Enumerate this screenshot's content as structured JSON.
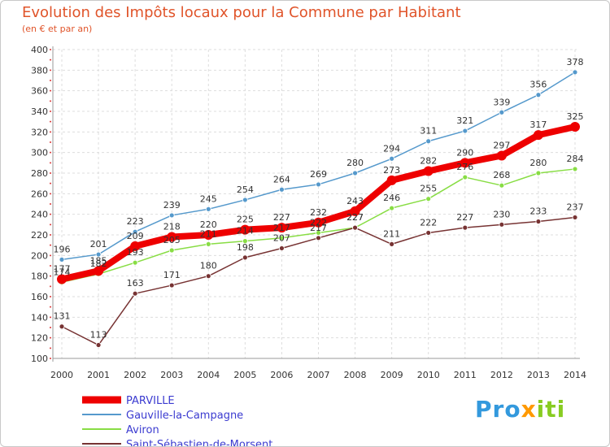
{
  "chart_data": {
    "type": "line",
    "title": "Evolution des Impôts locaux pour la Commune par Habitant",
    "subtitle": "(en € et par an)",
    "xlabel": "",
    "ylabel": "",
    "x": [
      "2000",
      "2001",
      "2002",
      "2003",
      "2004",
      "2005",
      "2006",
      "2007",
      "2008",
      "2009",
      "2010",
      "2011",
      "2012",
      "2013",
      "2014"
    ],
    "ylim": [
      100,
      400
    ],
    "yticks": [
      100,
      120,
      140,
      160,
      180,
      200,
      220,
      240,
      260,
      280,
      300,
      320,
      340,
      360,
      380,
      400
    ],
    "series": [
      {
        "name": "Gauville-la-Campagne",
        "color": "#5599cc",
        "values": [
          196,
          201,
          223,
          239,
          245,
          254,
          264,
          269,
          280,
          294,
          311,
          321,
          339,
          356,
          378
        ]
      },
      {
        "name": "Aviron",
        "color": "#88dd44",
        "values": [
          174,
          182,
          193,
          205,
          211,
          214,
          217,
          222,
          227,
          246,
          255,
          276,
          268,
          280,
          284
        ]
      },
      {
        "name": "Saint-Sébastien-de-Morsent",
        "color": "#773333",
        "values": [
          131,
          113,
          163,
          171,
          180,
          198,
          207,
          217,
          227,
          211,
          222,
          227,
          230,
          233,
          237
        ]
      },
      {
        "name": "PARVILLE",
        "color": "#ee0000",
        "values": [
          177,
          185,
          209,
          218,
          220,
          225,
          227,
          232,
          243,
          273,
          282,
          290,
          297,
          317,
          325
        ]
      }
    ],
    "legend_order": [
      "PARVILLE",
      "Gauville-la-Campagne",
      "Aviron",
      "Saint-Sébastien-de-Morsent"
    ]
  },
  "brand": {
    "parts": [
      "Pro",
      "x",
      "iti"
    ],
    "colors": [
      "#3399dd",
      "#ff9900",
      "#88cc22"
    ]
  }
}
